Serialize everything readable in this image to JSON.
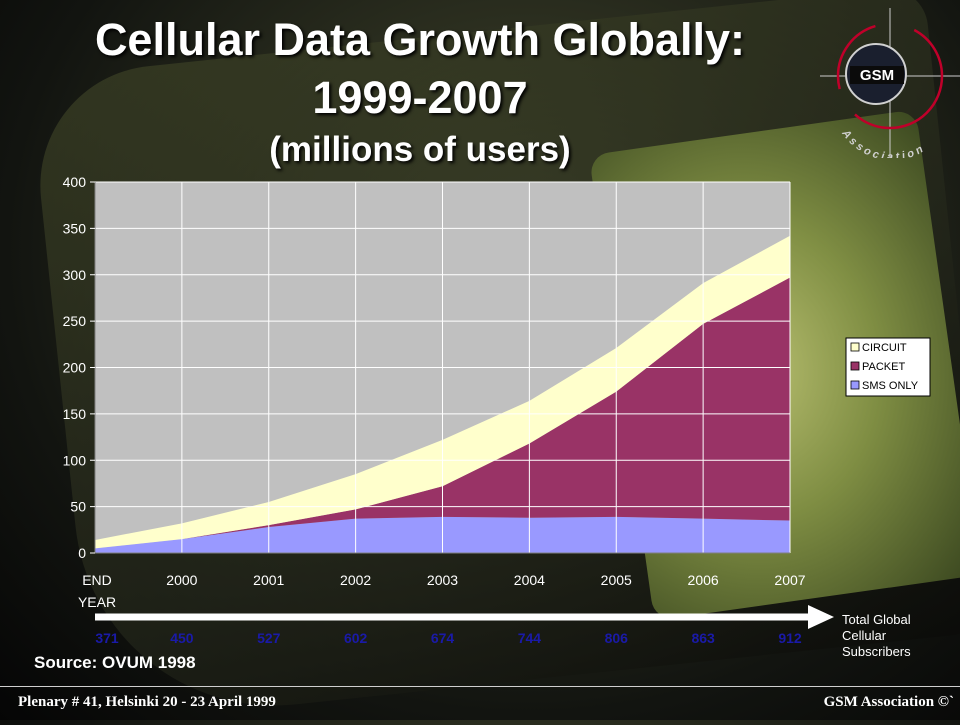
{
  "slide": {
    "title_line1": "Cellular Data Growth Globally:",
    "title_line2": "1999-2007",
    "title_line3": "(millions of users)",
    "source": "Source: OVUM 1998",
    "totals_label": "Total Global Cellular Subscribers",
    "footer_left": "Plenary # 41, Helsinki 20 - 23 April 1999",
    "footer_right": "GSM Association ©`",
    "logo_text": "GSM",
    "logo_ring_text": "Association"
  },
  "chart_data": {
    "type": "area",
    "stacked": true,
    "x_labels": [
      "END\nYEAR",
      "2000",
      "2001",
      "2002",
      "2003",
      "2004",
      "2005",
      "2006",
      "2007"
    ],
    "y_ticks": [
      0,
      50,
      100,
      150,
      200,
      250,
      300,
      350,
      400
    ],
    "ylim": [
      0,
      400
    ],
    "grid": true,
    "legend_position": "right",
    "series": [
      {
        "name": "SMS ONLY",
        "color": "#9999ff",
        "values": [
          5,
          15,
          28,
          37,
          39,
          38,
          39,
          37,
          35
        ]
      },
      {
        "name": "PACKET",
        "color": "#993366",
        "values": [
          0,
          0,
          2,
          10,
          33,
          80,
          135,
          210,
          262
        ]
      },
      {
        "name": "CIRCUIT",
        "color": "#ffffcc",
        "values": [
          9,
          17,
          25,
          38,
          50,
          46,
          47,
          44,
          45
        ]
      }
    ],
    "legend_order": [
      "CIRCUIT",
      "PACKET",
      "SMS ONLY"
    ],
    "subscribers": [
      "371",
      "450",
      "527",
      "602",
      "674",
      "744",
      "806",
      "863",
      "912"
    ],
    "plot_bg": "#c0c0c0"
  }
}
